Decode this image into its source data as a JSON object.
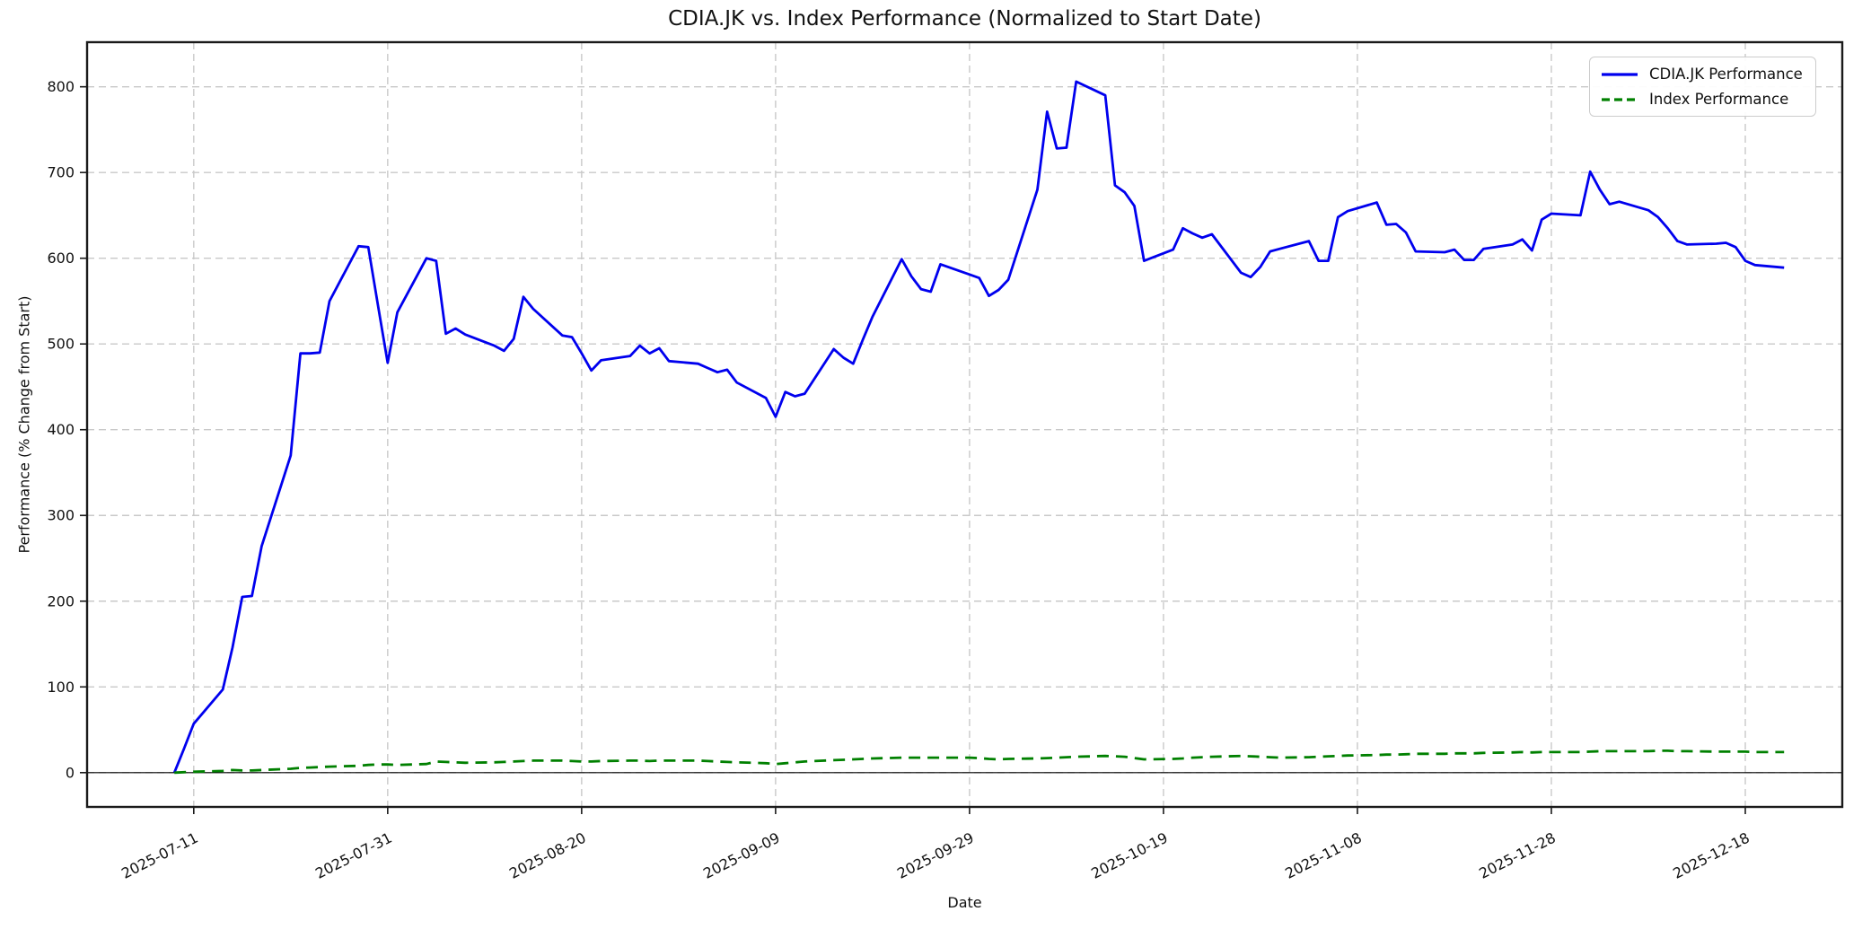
{
  "title": "CDIA.JK vs. Index Performance (Normalized to Start Date)",
  "xlabel": "Date",
  "ylabel": "Performance (% Change from Start)",
  "colors": {
    "cdia_line": "#0000ee",
    "index_line": "#008000",
    "grid": "#c9c9c9",
    "spine": "#1a1a1a",
    "zero_line": "#000000",
    "legend_border": "#cccccc",
    "text": "#111111"
  },
  "chart_data": {
    "type": "line",
    "title": "CDIA.JK vs. Index Performance (Normalized to Start Date)",
    "xlabel": "Date",
    "ylabel": "Performance (% Change from Start)",
    "grid": true,
    "zero_line": true,
    "legend_position": "upper right",
    "xlim": [
      "2025-06-30",
      "2025-12-28"
    ],
    "ylim": [
      -40,
      852
    ],
    "x_ticks": [
      "2025-07-11",
      "2025-07-31",
      "2025-08-20",
      "2025-09-09",
      "2025-09-29",
      "2025-10-19",
      "2025-11-08",
      "2025-11-28",
      "2025-12-18"
    ],
    "y_ticks": [
      0,
      100,
      200,
      300,
      400,
      500,
      600,
      700,
      800
    ],
    "x": [
      "2025-07-09",
      "2025-07-10",
      "2025-07-11",
      "2025-07-14",
      "2025-07-15",
      "2025-07-16",
      "2025-07-17",
      "2025-07-18",
      "2025-07-21",
      "2025-07-22",
      "2025-07-23",
      "2025-07-24",
      "2025-07-25",
      "2025-07-28",
      "2025-07-29",
      "2025-07-30",
      "2025-07-31",
      "2025-08-01",
      "2025-08-04",
      "2025-08-05",
      "2025-08-06",
      "2025-08-07",
      "2025-08-08",
      "2025-08-11",
      "2025-08-12",
      "2025-08-13",
      "2025-08-14",
      "2025-08-15",
      "2025-08-18",
      "2025-08-19",
      "2025-08-20",
      "2025-08-21",
      "2025-08-22",
      "2025-08-25",
      "2025-08-26",
      "2025-08-27",
      "2025-08-28",
      "2025-08-29",
      "2025-09-01",
      "2025-09-02",
      "2025-09-03",
      "2025-09-04",
      "2025-09-05",
      "2025-09-08",
      "2025-09-09",
      "2025-09-10",
      "2025-09-11",
      "2025-09-12",
      "2025-09-15",
      "2025-09-16",
      "2025-09-17",
      "2025-09-18",
      "2025-09-19",
      "2025-09-22",
      "2025-09-23",
      "2025-09-24",
      "2025-09-25",
      "2025-09-26",
      "2025-09-29",
      "2025-09-30",
      "2025-10-01",
      "2025-10-02",
      "2025-10-03",
      "2025-10-06",
      "2025-10-07",
      "2025-10-08",
      "2025-10-09",
      "2025-10-10",
      "2025-10-13",
      "2025-10-14",
      "2025-10-15",
      "2025-10-16",
      "2025-10-17",
      "2025-10-20",
      "2025-10-21",
      "2025-10-22",
      "2025-10-23",
      "2025-10-24",
      "2025-10-27",
      "2025-10-28",
      "2025-10-29",
      "2025-10-30",
      "2025-10-31",
      "2025-11-03",
      "2025-11-04",
      "2025-11-05",
      "2025-11-06",
      "2025-11-07",
      "2025-11-10",
      "2025-11-11",
      "2025-11-12",
      "2025-11-13",
      "2025-11-14",
      "2025-11-17",
      "2025-11-18",
      "2025-11-19",
      "2025-11-20",
      "2025-11-21",
      "2025-11-24",
      "2025-11-25",
      "2025-11-26",
      "2025-11-27",
      "2025-11-28",
      "2025-12-01",
      "2025-12-02",
      "2025-12-03",
      "2025-12-04",
      "2025-12-05",
      "2025-12-08",
      "2025-12-09",
      "2025-12-10",
      "2025-12-11",
      "2025-12-12",
      "2025-12-15",
      "2025-12-16",
      "2025-12-17",
      "2025-12-18",
      "2025-12-19",
      "2025-12-22"
    ],
    "series": [
      {
        "name": "CDIA.JK Performance",
        "color": "#0000ee",
        "style": "solid",
        "values": [
          0,
          28,
          57,
          97,
          146,
          205,
          206,
          264,
          370,
          489,
          489,
          490,
          550,
          614,
          613,
          545,
          478,
          537,
          600,
          597,
          512,
          518,
          511,
          498,
          492,
          506,
          555,
          541,
          510,
          508,
          489,
          469,
          481,
          486,
          498,
          489,
          495,
          480,
          477,
          472,
          467,
          470,
          455,
          437,
          415,
          444,
          439,
          442,
          494,
          484,
          477,
          505,
          532,
          599,
          579,
          564,
          561,
          593,
          581,
          577,
          556,
          563,
          575,
          680,
          771,
          728,
          729,
          806,
          790,
          685,
          677,
          661,
          597,
          610,
          635,
          629,
          624,
          628,
          583,
          578,
          590,
          608,
          611,
          620,
          597,
          597,
          648,
          655,
          665,
          639,
          640,
          630,
          608,
          607,
          610,
          598,
          598,
          611,
          616,
          622,
          609,
          645,
          652,
          650,
          701,
          680,
          663,
          666,
          656,
          648,
          635,
          620,
          616,
          617,
          618,
          613,
          597,
          592,
          589
        ]
      },
      {
        "name": "Index Performance",
        "color": "#008000",
        "style": "dashed",
        "values": [
          0,
          0.5,
          1,
          2,
          3,
          2.5,
          2.5,
          3,
          4.5,
          5.5,
          6,
          6.5,
          7,
          8,
          9,
          9.5,
          9.5,
          9,
          10,
          13,
          12.5,
          12,
          11.5,
          12,
          12.5,
          13,
          13.5,
          14,
          14,
          13.5,
          13,
          13,
          13.5,
          14,
          14,
          13.5,
          14,
          14,
          14,
          13.5,
          13,
          12.5,
          12,
          11,
          10,
          11,
          12,
          13,
          14.5,
          15,
          15.5,
          16,
          16.5,
          17.5,
          17.5,
          17.5,
          17.5,
          17.5,
          17.5,
          17,
          16,
          15.5,
          16,
          16.5,
          17,
          17.5,
          18,
          18.5,
          19.5,
          19,
          18.5,
          17,
          15.5,
          16,
          16.5,
          17.5,
          18,
          18.5,
          19.5,
          19,
          18.5,
          18,
          17.5,
          18,
          18.5,
          19,
          19.5,
          20,
          20.5,
          21,
          21,
          21.5,
          22,
          22,
          22.5,
          22.5,
          22.5,
          23,
          23.5,
          24,
          23.5,
          24,
          24,
          24,
          24.5,
          25,
          25,
          25,
          25,
          25.5,
          25.5,
          25,
          25,
          24.5,
          24.5,
          24.5,
          24.5,
          24,
          24
        ]
      }
    ]
  }
}
